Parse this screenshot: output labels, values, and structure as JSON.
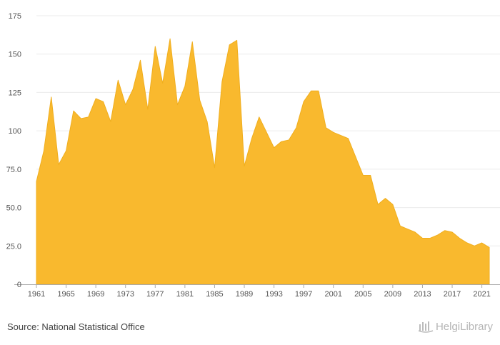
{
  "chart_data": {
    "type": "area",
    "x": [
      1961,
      1962,
      1963,
      1964,
      1965,
      1966,
      1967,
      1968,
      1969,
      1970,
      1971,
      1972,
      1973,
      1974,
      1975,
      1976,
      1977,
      1978,
      1979,
      1980,
      1981,
      1982,
      1983,
      1984,
      1985,
      1986,
      1987,
      1988,
      1989,
      1990,
      1991,
      1992,
      1993,
      1994,
      1995,
      1996,
      1997,
      1998,
      1999,
      2000,
      2001,
      2002,
      2003,
      2004,
      2005,
      2006,
      2007,
      2008,
      2009,
      2010,
      2011,
      2012,
      2013,
      2014,
      2015,
      2016,
      2017,
      2018,
      2019,
      2020,
      2021,
      2022
    ],
    "series": [
      {
        "values": [
          67,
          87,
          122,
          78,
          87,
          113,
          108,
          109,
          121,
          119,
          106,
          133,
          117,
          127,
          146,
          114,
          155,
          131,
          160,
          117,
          129,
          158,
          120,
          106,
          76,
          132,
          156,
          159,
          77,
          95,
          109,
          99,
          89,
          93,
          94,
          102,
          119,
          126,
          126,
          102,
          99,
          97,
          95,
          83,
          71,
          71,
          52,
          56,
          52,
          38,
          36,
          34,
          30,
          30,
          32,
          35,
          34,
          30,
          27,
          25,
          27,
          24
        ]
      }
    ],
    "ylim": [
      0,
      175
    ],
    "yticks": [
      0,
      25.0,
      50.0,
      75.0,
      100,
      125,
      150,
      175
    ],
    "ytick_labels": [
      "0",
      "25.0",
      "50.0",
      "75.0",
      "100",
      "125",
      "150",
      "175"
    ],
    "xticks": [
      1961,
      1965,
      1969,
      1973,
      1977,
      1981,
      1985,
      1989,
      1993,
      1997,
      2001,
      2005,
      2009,
      2013,
      2017,
      2021
    ],
    "xtick_labels": [
      "1961",
      "1965",
      "1969",
      "1973",
      "1977",
      "1981",
      "1985",
      "1989",
      "1993",
      "1997",
      "2001",
      "2005",
      "2009",
      "2013",
      "2017",
      "2021"
    ],
    "title": "",
    "xlabel": "",
    "ylabel": "",
    "grid": "horizontal",
    "colors": {
      "fill": "#F9B92E",
      "stroke": "#F0AE1E",
      "grid": "#EBEBEB",
      "axis": "#AAAAAA"
    }
  },
  "footer": {
    "source_text": "Source: National Statistical Office",
    "logo_text": "HelgiLibrary"
  }
}
